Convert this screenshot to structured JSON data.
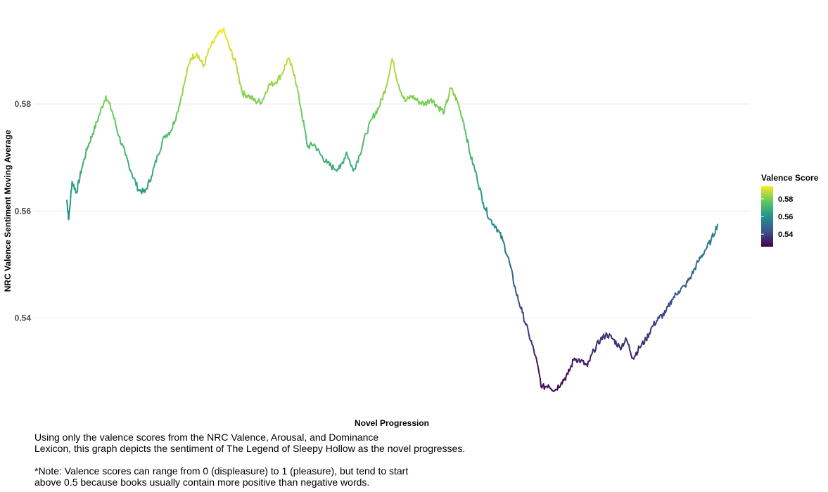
{
  "chart_data": {
    "type": "line",
    "title": "",
    "xlabel": "Novel Progression",
    "ylabel": "NRC Valence Sentiment Moving Average",
    "xlim": [
      0,
      100
    ],
    "ylim": [
      0.5217,
      0.5968
    ],
    "y_ticks": [
      "0.54",
      "0.56",
      "0.58"
    ],
    "x_ticks": [],
    "grid": "horizontal major gridlines",
    "legend": {
      "title": "Valence Score",
      "placement": "right",
      "type": "colorbar",
      "labels": [
        "0.54",
        "0.56",
        "0.58"
      ],
      "range": [
        0.5258,
        0.5942
      ],
      "colors": [
        "#440154",
        "#3b528b",
        "#21918c",
        "#5ec962",
        "#fde725"
      ]
    },
    "series": [
      {
        "x": [
          0,
          0.3,
          0.8,
          1.5,
          2.3,
          3.2,
          4,
          5,
          6,
          7,
          8,
          9,
          10,
          11,
          12,
          13,
          14,
          15,
          16,
          17,
          18,
          19,
          20,
          21,
          22,
          23,
          24,
          25,
          26,
          27,
          28,
          29,
          30,
          31,
          32,
          33,
          34,
          35,
          36,
          37,
          38,
          39,
          40,
          41,
          42,
          43,
          44,
          45,
          46,
          47,
          48,
          49,
          50,
          51,
          52,
          53,
          54,
          55,
          56,
          57,
          58,
          59,
          60,
          61,
          62,
          63,
          64,
          65,
          66,
          67,
          68,
          69,
          70,
          71,
          72,
          73,
          74,
          75,
          76,
          77,
          78,
          79,
          80,
          81,
          82,
          83,
          84,
          85,
          86,
          87,
          88,
          89,
          90,
          91,
          92,
          93,
          94,
          95,
          96,
          97,
          98,
          99,
          100
        ],
        "values": [
          0.562,
          0.5585,
          0.5655,
          0.5635,
          0.568,
          0.572,
          0.5745,
          0.578,
          0.5815,
          0.5785,
          0.574,
          0.5705,
          0.567,
          0.564,
          0.5635,
          0.5665,
          0.5705,
          0.574,
          0.575,
          0.5785,
          0.5835,
          0.5885,
          0.5895,
          0.587,
          0.5905,
          0.5925,
          0.594,
          0.5905,
          0.5875,
          0.582,
          0.5815,
          0.5805,
          0.5805,
          0.5835,
          0.584,
          0.5855,
          0.5885,
          0.5855,
          0.579,
          0.572,
          0.5725,
          0.5705,
          0.569,
          0.568,
          0.568,
          0.571,
          0.5675,
          0.5705,
          0.5745,
          0.5775,
          0.5795,
          0.583,
          0.5885,
          0.5835,
          0.5805,
          0.5815,
          0.5805,
          0.58,
          0.581,
          0.5795,
          0.5785,
          0.583,
          0.5805,
          0.5765,
          0.5705,
          0.5665,
          0.5615,
          0.5585,
          0.557,
          0.5545,
          0.5505,
          0.545,
          0.541,
          0.537,
          0.533,
          0.527,
          0.5275,
          0.5265,
          0.528,
          0.5295,
          0.5325,
          0.532,
          0.531,
          0.534,
          0.536,
          0.537,
          0.536,
          0.5345,
          0.536,
          0.5325,
          0.5345,
          0.536,
          0.5385,
          0.54,
          0.541,
          0.5435,
          0.545,
          0.546,
          0.548,
          0.5505,
          0.5525,
          0.5545,
          0.5575
        ]
      }
    ]
  },
  "caption": {
    "text": "Using only the valence scores from the NRC Valence, Arousal, and Dominance\nLexicon, this graph depicts the sentiment of The Legend of Sleepy Hollow as the novel progresses.",
    "note": "*Note: Valence scores can range from 0 (displeasure) to 1 (pleasure), but tend to start\nabove 0.5 because books usually contain more positive than negative words."
  }
}
